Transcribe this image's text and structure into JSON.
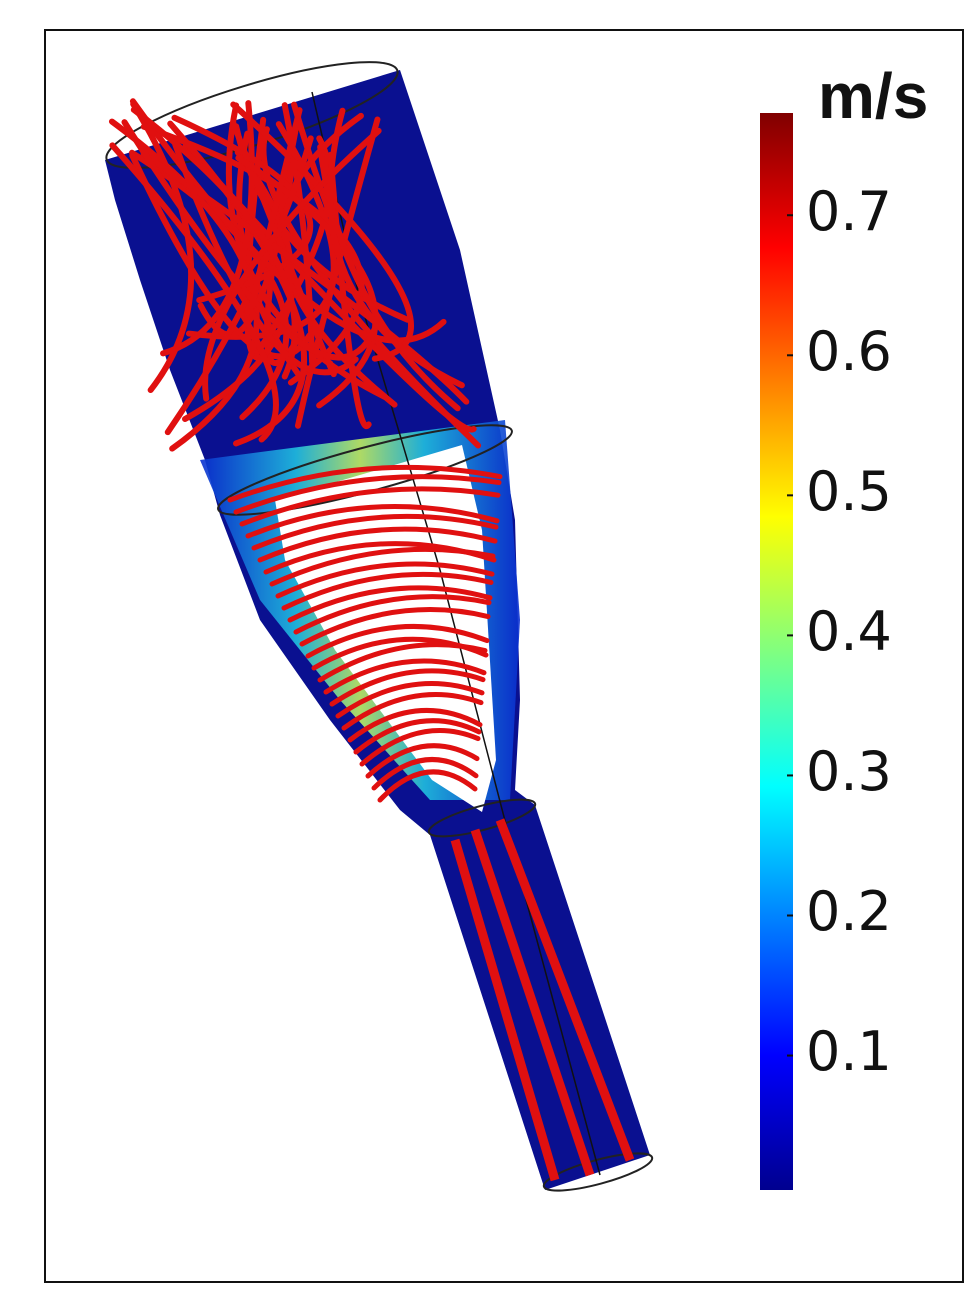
{
  "colorbar": {
    "unit": "m/s",
    "lim": [
      0.004,
      0.773
    ],
    "ticks": [
      0.1,
      0.2,
      0.3,
      0.4,
      0.5,
      0.6,
      0.7
    ],
    "colormap": "jet"
  }
}
